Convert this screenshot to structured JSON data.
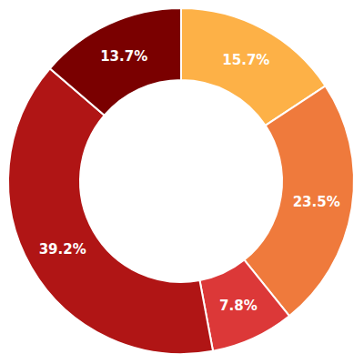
{
  "chart_data": {
    "type": "pie",
    "values": [
      15.7,
      23.5,
      7.8,
      39.2,
      13.7
    ],
    "value_labels": [
      "15.7%",
      "23.5%",
      "7.8%",
      "39.2%",
      "13.7%"
    ],
    "colors": [
      "#fdb147",
      "#ef7a3c",
      "#dc3838",
      "#b01515",
      "#7a0000"
    ],
    "data_labels": true
  }
}
